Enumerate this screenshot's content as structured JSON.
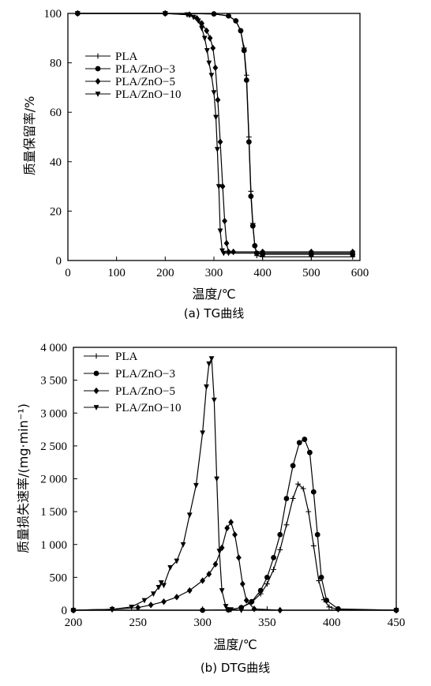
{
  "chart_data": [
    {
      "id": "tg",
      "type": "line",
      "caption": "(a) TG曲线",
      "xlabel": "温度/℃",
      "ylabel": "质量保留率/%",
      "xlim": [
        0,
        600
      ],
      "ylim": [
        0,
        100
      ],
      "xticks": [
        0,
        100,
        200,
        300,
        400,
        500,
        600
      ],
      "yticks": [
        0,
        20,
        40,
        60,
        80,
        100
      ],
      "xtick_labels": [
        "0",
        "100",
        "200",
        "300",
        "400",
        "500",
        "600"
      ],
      "ytick_labels": [
        "0",
        "20",
        "40",
        "60",
        "80",
        "100"
      ],
      "legend_position": "top-left",
      "series": [
        {
          "name": "PLA",
          "marker": "plus",
          "x": [
            20,
            200,
            300,
            330,
            345,
            355,
            362,
            367,
            372,
            376,
            380,
            384,
            388,
            400,
            500,
            585
          ],
          "y": [
            100,
            100,
            99.8,
            99,
            97,
            93,
            86,
            75,
            50,
            28,
            15,
            6,
            2,
            1.5,
            1.5,
            1.5
          ]
        },
        {
          "name": "PLA/ZnO−3",
          "marker": "circle",
          "x": [
            20,
            200,
            300,
            330,
            345,
            355,
            362,
            367,
            372,
            376,
            380,
            384,
            388,
            400,
            500,
            585
          ],
          "y": [
            100,
            100,
            99.8,
            99,
            97,
            93,
            85,
            73,
            48,
            26,
            14,
            6,
            3,
            2.5,
            2.5,
            2.5
          ]
        },
        {
          "name": "PLA/ZnO−5",
          "marker": "diamond",
          "x": [
            20,
            200,
            250,
            265,
            275,
            285,
            292,
            298,
            303,
            308,
            313,
            318,
            322,
            326,
            330,
            340,
            400,
            500,
            585
          ],
          "y": [
            100,
            100,
            99.5,
            98,
            96,
            93,
            90,
            86,
            78,
            65,
            48,
            30,
            16,
            7,
            3.5,
            3.5,
            3.5,
            3.5,
            3.5
          ]
        },
        {
          "name": "PLA/ZnO−10",
          "marker": "triangle-down",
          "x": [
            20,
            200,
            245,
            258,
            268,
            275,
            281,
            286,
            290,
            295,
            300,
            304,
            307,
            310,
            313,
            317,
            320,
            330,
            400,
            500,
            585
          ],
          "y": [
            100,
            100,
            99.5,
            98.5,
            97,
            94,
            90,
            85,
            80,
            75,
            68,
            58,
            45,
            30,
            12,
            4,
            3,
            3,
            3,
            3,
            3
          ]
        }
      ]
    },
    {
      "id": "dtg",
      "type": "line",
      "caption": "(b) DTG曲线",
      "xlabel": "温度/℃",
      "ylabel": "质量损失速率/(mg·min⁻¹)",
      "xlim": [
        200,
        450
      ],
      "ylim": [
        0,
        4000
      ],
      "xticks": [
        200,
        250,
        300,
        350,
        400,
        450
      ],
      "yticks": [
        0,
        500,
        1000,
        1500,
        2000,
        2500,
        3000,
        3500,
        4000
      ],
      "xtick_labels": [
        "200",
        "250",
        "300",
        "350",
        "400",
        "450"
      ],
      "ytick_labels": [
        "0",
        "500",
        "1 000",
        "1 500",
        "2 000",
        "2 500",
        "3 000",
        "3 500",
        "4 000"
      ],
      "legend_position": "top-left",
      "series": [
        {
          "name": "PLA",
          "marker": "plus",
          "x": [
            200,
            300,
            320,
            330,
            338,
            345,
            350,
            355,
            360,
            365,
            370,
            374,
            378,
            382,
            386,
            390,
            394,
            398,
            405,
            450
          ],
          "y": [
            0,
            0,
            5,
            40,
            120,
            250,
            400,
            620,
            920,
            1300,
            1700,
            1920,
            1850,
            1500,
            980,
            450,
            160,
            50,
            10,
            0
          ]
        },
        {
          "name": "PLA/ZnO−3",
          "marker": "circle",
          "x": [
            200,
            300,
            320,
            330,
            338,
            345,
            350,
            355,
            360,
            365,
            370,
            375,
            379,
            383,
            386,
            389,
            392,
            396,
            405,
            450
          ],
          "y": [
            0,
            0,
            5,
            40,
            130,
            300,
            500,
            800,
            1150,
            1700,
            2200,
            2550,
            2600,
            2400,
            1800,
            1150,
            500,
            150,
            20,
            0
          ]
        },
        {
          "name": "PLA/ZnO−5",
          "marker": "diamond",
          "x": [
            200,
            230,
            250,
            260,
            270,
            280,
            290,
            300,
            305,
            310,
            315,
            319,
            322,
            325,
            328,
            331,
            334,
            340,
            360,
            450
          ],
          "y": [
            0,
            15,
            40,
            80,
            130,
            200,
            300,
            450,
            550,
            700,
            950,
            1250,
            1340,
            1150,
            800,
            400,
            150,
            20,
            0,
            0
          ]
        },
        {
          "name": "PLA/ZnO−10",
          "marker": "triangle-down",
          "x": [
            200,
            230,
            245,
            255,
            262,
            266,
            268,
            270,
            275,
            280,
            285,
            290,
            295,
            300,
            303,
            305,
            307,
            309,
            311,
            313,
            315,
            318,
            322,
            330,
            450
          ],
          "y": [
            0,
            15,
            50,
            150,
            250,
            350,
            420,
            380,
            650,
            750,
            1000,
            1450,
            1900,
            2700,
            3400,
            3750,
            3830,
            3200,
            2000,
            900,
            300,
            60,
            10,
            0,
            0
          ]
        }
      ]
    }
  ]
}
